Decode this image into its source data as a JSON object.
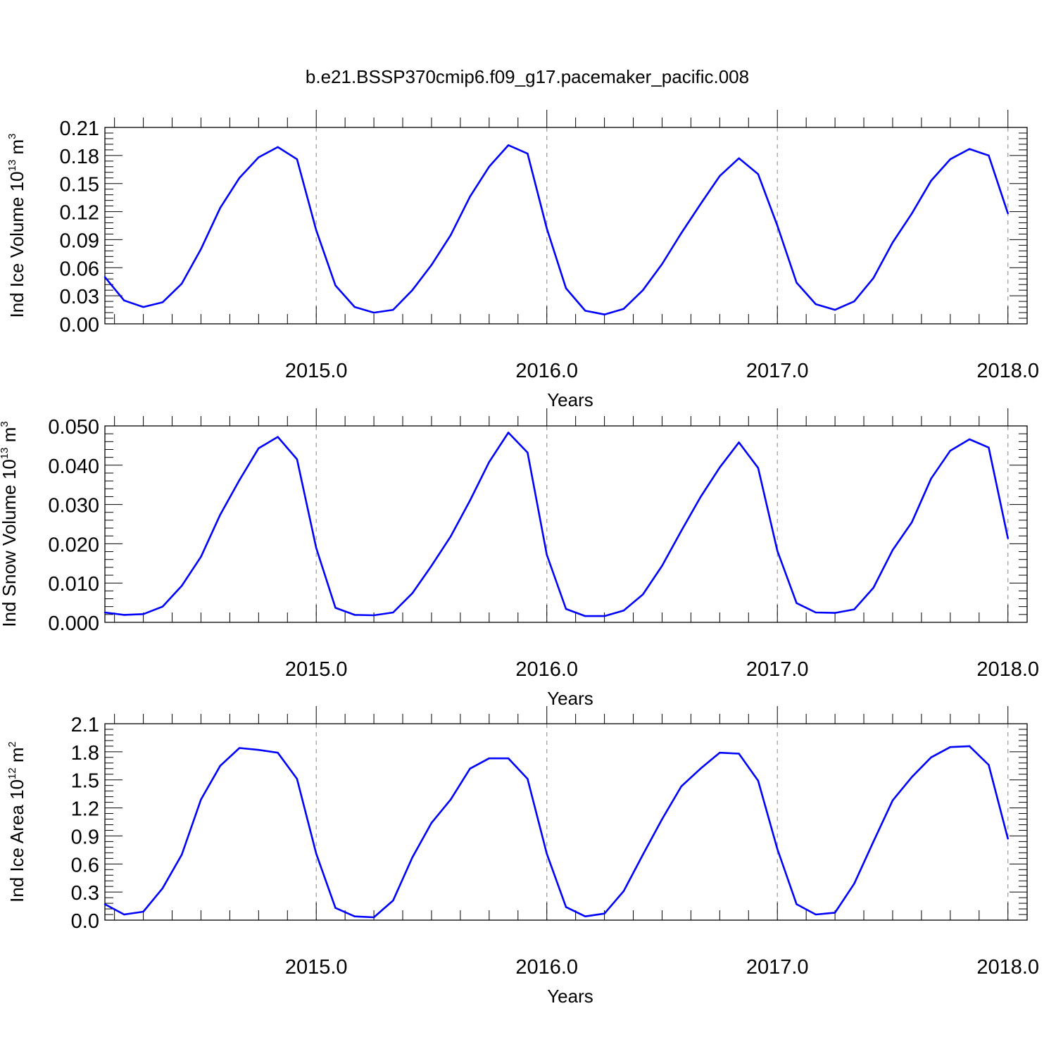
{
  "figure": {
    "title": "b.e21.BSSP370cmip6.f09_g17.pacemaker_pacific.008"
  },
  "colors": {
    "line": "#0000ff",
    "axes": "#000000",
    "grid": "#999999"
  },
  "chart_data": [
    {
      "type": "line",
      "title": "b.e21.BSSP370cmip6.f09_g17.pacemaker_pacific.008",
      "xlabel": "Years",
      "ylabel": "Ind Ice Volume 10",
      "ylabel_exp": "13",
      "ylabel_unit": " m",
      "ylabel_unit_exp": "3",
      "xlim": [
        2014.0833,
        2018.0833
      ],
      "ylim": [
        0,
        0.21
      ],
      "xticks": [
        "2015.0",
        "2016.0",
        "2017.0",
        "2018.0"
      ],
      "xtick_values": [
        2015,
        2016,
        2017,
        2018
      ],
      "yticks": [
        "0.00",
        "0.03",
        "0.06",
        "0.09",
        "0.12",
        "0.15",
        "0.18",
        "0.21"
      ],
      "ytick_values": [
        0,
        0.03,
        0.06,
        0.09,
        0.12,
        0.15,
        0.18,
        0.21
      ],
      "grid": "dashed vertical at major x ticks",
      "series": [
        {
          "x": [
            2014.0833,
            2014.1667,
            2014.25,
            2014.3333,
            2014.4167,
            2014.5,
            2014.5833,
            2014.6667,
            2014.75,
            2014.8333,
            2014.9167,
            2015.0,
            2015.0833,
            2015.1667,
            2015.25,
            2015.3333,
            2015.4167,
            2015.5,
            2015.5833,
            2015.6667,
            2015.75,
            2015.8333,
            2015.9167,
            2016.0,
            2016.0833,
            2016.1667,
            2016.25,
            2016.3333,
            2016.4167,
            2016.5,
            2016.5833,
            2016.6667,
            2016.75,
            2016.8333,
            2016.9167,
            2017.0,
            2017.0833,
            2017.1667,
            2017.25,
            2017.3333,
            2017.4167,
            2017.5,
            2017.5833,
            2017.6667,
            2017.75,
            2017.8333,
            2017.9167,
            2018.0
          ],
          "y": [
            0.05,
            0.025,
            0.018,
            0.023,
            0.043,
            0.08,
            0.124,
            0.156,
            0.178,
            0.189,
            0.176,
            0.1,
            0.041,
            0.018,
            0.012,
            0.015,
            0.036,
            0.063,
            0.095,
            0.136,
            0.168,
            0.191,
            0.182,
            0.102,
            0.038,
            0.014,
            0.01,
            0.016,
            0.036,
            0.064,
            0.097,
            0.128,
            0.158,
            0.177,
            0.16,
            0.105,
            0.044,
            0.021,
            0.015,
            0.024,
            0.049,
            0.087,
            0.118,
            0.153,
            0.176,
            0.187,
            0.18,
            0.118
          ]
        }
      ]
    },
    {
      "type": "line",
      "xlabel": "Years",
      "ylabel": "Ind Snow Volume 10",
      "ylabel_exp": "13",
      "ylabel_unit": " m",
      "ylabel_unit_exp": "3",
      "xlim": [
        2014.0833,
        2018.0833
      ],
      "ylim": [
        0,
        0.05
      ],
      "xticks": [
        "2015.0",
        "2016.0",
        "2017.0",
        "2018.0"
      ],
      "xtick_values": [
        2015,
        2016,
        2017,
        2018
      ],
      "yticks": [
        "0.000",
        "0.010",
        "0.020",
        "0.030",
        "0.040",
        "0.050"
      ],
      "ytick_values": [
        0,
        0.01,
        0.02,
        0.03,
        0.04,
        0.05
      ],
      "grid": "dashed vertical at major x ticks",
      "series": [
        {
          "x": [
            2014.0833,
            2014.1667,
            2014.25,
            2014.3333,
            2014.4167,
            2014.5,
            2014.5833,
            2014.6667,
            2014.75,
            2014.8333,
            2014.9167,
            2015.0,
            2015.0833,
            2015.1667,
            2015.25,
            2015.3333,
            2015.4167,
            2015.5,
            2015.5833,
            2015.6667,
            2015.75,
            2015.8333,
            2015.9167,
            2016.0,
            2016.0833,
            2016.1667,
            2016.25,
            2016.3333,
            2016.4167,
            2016.5,
            2016.5833,
            2016.6667,
            2016.75,
            2016.8333,
            2016.9167,
            2017.0,
            2017.0833,
            2017.1667,
            2017.25,
            2017.3333,
            2017.4167,
            2017.5,
            2017.5833,
            2017.6667,
            2017.75,
            2017.8333,
            2017.9167,
            2018.0
          ],
          "y": [
            0.0025,
            0.0019,
            0.0021,
            0.004,
            0.0093,
            0.0167,
            0.0274,
            0.0362,
            0.0443,
            0.0472,
            0.0415,
            0.0189,
            0.0037,
            0.0019,
            0.0018,
            0.0025,
            0.0074,
            0.0144,
            0.0219,
            0.031,
            0.0408,
            0.0483,
            0.0432,
            0.0172,
            0.0034,
            0.0016,
            0.0016,
            0.003,
            0.0071,
            0.0144,
            0.0233,
            0.0319,
            0.0394,
            0.0458,
            0.0393,
            0.0182,
            0.0049,
            0.0025,
            0.0024,
            0.0033,
            0.0088,
            0.0184,
            0.0255,
            0.0366,
            0.0437,
            0.0466,
            0.0445,
            0.0214
          ]
        }
      ]
    },
    {
      "type": "line",
      "xlabel": "Years",
      "ylabel": "Ind Ice Area 10",
      "ylabel_exp": "12",
      "ylabel_unit": " m",
      "ylabel_unit_exp": "2",
      "xlim": [
        2014.0833,
        2018.0833
      ],
      "ylim": [
        0,
        2.1
      ],
      "xticks": [
        "2015.0",
        "2016.0",
        "2017.0",
        "2018.0"
      ],
      "xtick_values": [
        2015,
        2016,
        2017,
        2018
      ],
      "yticks": [
        "0.0",
        "0.3",
        "0.6",
        "0.9",
        "1.2",
        "1.5",
        "1.8",
        "2.1"
      ],
      "ytick_values": [
        0,
        0.3,
        0.6,
        0.9,
        1.2,
        1.5,
        1.8,
        2.1
      ],
      "grid": "dashed vertical at major x ticks",
      "series": [
        {
          "x": [
            2014.0833,
            2014.1667,
            2014.25,
            2014.3333,
            2014.4167,
            2014.5,
            2014.5833,
            2014.6667,
            2014.75,
            2014.8333,
            2014.9167,
            2015.0,
            2015.0833,
            2015.1667,
            2015.25,
            2015.3333,
            2015.4167,
            2015.5,
            2015.5833,
            2015.6667,
            2015.75,
            2015.8333,
            2015.9167,
            2016.0,
            2016.0833,
            2016.1667,
            2016.25,
            2016.3333,
            2016.4167,
            2016.5,
            2016.5833,
            2016.6667,
            2016.75,
            2016.8333,
            2016.9167,
            2017.0,
            2017.0833,
            2017.1667,
            2017.25,
            2017.3333,
            2017.4167,
            2017.5,
            2017.5833,
            2017.6667,
            2017.75,
            2017.8333,
            2017.9167,
            2018.0
          ],
          "y": [
            0.17,
            0.06,
            0.09,
            0.34,
            0.7,
            1.29,
            1.65,
            1.84,
            1.82,
            1.79,
            1.51,
            0.71,
            0.13,
            0.04,
            0.03,
            0.21,
            0.67,
            1.04,
            1.29,
            1.62,
            1.73,
            1.73,
            1.51,
            0.71,
            0.14,
            0.04,
            0.07,
            0.31,
            0.7,
            1.08,
            1.43,
            1.62,
            1.79,
            1.78,
            1.49,
            0.76,
            0.17,
            0.06,
            0.08,
            0.39,
            0.84,
            1.28,
            1.53,
            1.74,
            1.85,
            1.86,
            1.66,
            0.87
          ]
        }
      ]
    }
  ]
}
